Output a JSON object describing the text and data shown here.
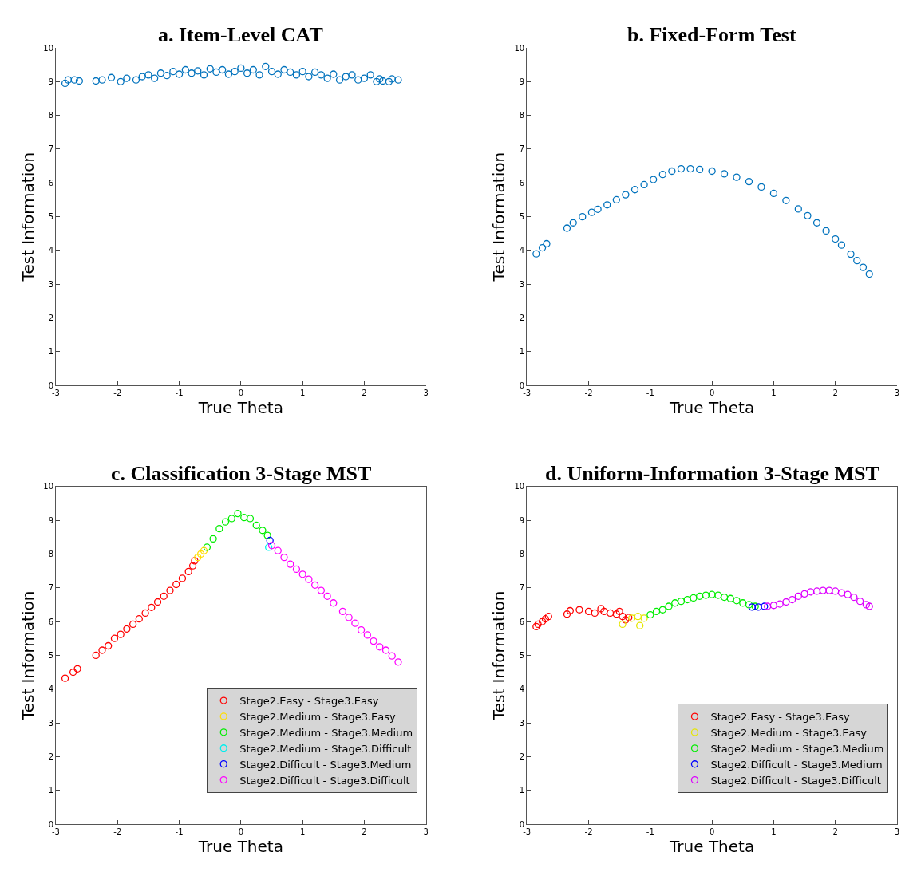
{
  "chart_data": [
    {
      "type": "scatter",
      "title": "a. Item-Level CAT",
      "xlabel": "True Theta",
      "ylabel": "Test Information",
      "xlim": [
        -3,
        3
      ],
      "ylim": [
        0,
        10
      ],
      "xticks": [
        -3,
        -2,
        -1,
        0,
        1,
        2,
        3
      ],
      "yticks": [
        0,
        1,
        2,
        3,
        4,
        5,
        6,
        7,
        8,
        9,
        10
      ],
      "marker": "circle",
      "legend": false,
      "series": [
        {
          "color": "#0072bd",
          "x": [
            -2.85,
            -2.8,
            -2.7,
            -2.62,
            -2.35,
            -2.25,
            -2.1,
            -1.95,
            -1.85,
            -1.7,
            -1.6,
            -1.5,
            -1.4,
            -1.3,
            -1.2,
            -1.1,
            -1.0,
            -0.9,
            -0.8,
            -0.7,
            -0.6,
            -0.5,
            -0.4,
            -0.3,
            -0.2,
            -0.1,
            0.0,
            0.1,
            0.2,
            0.3,
            0.4,
            0.5,
            0.6,
            0.7,
            0.8,
            0.9,
            1.0,
            1.1,
            1.2,
            1.3,
            1.4,
            1.5,
            1.6,
            1.7,
            1.8,
            1.9,
            2.0,
            2.1,
            2.2,
            2.25,
            2.3,
            2.4,
            2.45,
            2.55
          ],
          "values": [
            8.95,
            9.05,
            9.05,
            9.02,
            9.02,
            9.05,
            9.12,
            9.0,
            9.1,
            9.05,
            9.15,
            9.2,
            9.1,
            9.25,
            9.18,
            9.3,
            9.22,
            9.35,
            9.25,
            9.32,
            9.2,
            9.38,
            9.28,
            9.35,
            9.22,
            9.3,
            9.4,
            9.25,
            9.35,
            9.2,
            9.45,
            9.3,
            9.22,
            9.35,
            9.28,
            9.2,
            9.3,
            9.15,
            9.28,
            9.2,
            9.1,
            9.22,
            9.05,
            9.15,
            9.2,
            9.05,
            9.1,
            9.2,
            9.0,
            9.08,
            9.02,
            9.0,
            9.08,
            9.05
          ]
        }
      ]
    },
    {
      "type": "scatter",
      "title": "b. Fixed-Form Test",
      "xlabel": "True Theta",
      "ylabel": "Test Information",
      "xlim": [
        -3,
        3
      ],
      "ylim": [
        0,
        10
      ],
      "xticks": [
        -3,
        -2,
        -1,
        0,
        1,
        2,
        3
      ],
      "yticks": [
        0,
        1,
        2,
        3,
        4,
        5,
        6,
        7,
        8,
        9,
        10
      ],
      "marker": "circle",
      "legend": false,
      "series": [
        {
          "color": "#0072bd",
          "x": [
            -2.85,
            -2.75,
            -2.68,
            -2.35,
            -2.25,
            -2.1,
            -1.95,
            -1.85,
            -1.7,
            -1.55,
            -1.4,
            -1.25,
            -1.1,
            -0.95,
            -0.8,
            -0.65,
            -0.5,
            -0.35,
            -0.2,
            0.0,
            0.2,
            0.4,
            0.6,
            0.8,
            1.0,
            1.2,
            1.4,
            1.55,
            1.7,
            1.85,
            2.0,
            2.1,
            2.25,
            2.35,
            2.45,
            2.55
          ],
          "values": [
            3.9,
            4.08,
            4.2,
            4.66,
            4.82,
            5.0,
            5.13,
            5.22,
            5.35,
            5.5,
            5.65,
            5.8,
            5.95,
            6.1,
            6.25,
            6.35,
            6.42,
            6.42,
            6.4,
            6.35,
            6.27,
            6.17,
            6.04,
            5.88,
            5.69,
            5.48,
            5.23,
            5.03,
            4.82,
            4.58,
            4.34,
            4.16,
            3.89,
            3.7,
            3.5,
            3.3
          ]
        }
      ]
    },
    {
      "type": "scatter",
      "title": "c. Classification 3-Stage MST",
      "xlabel": "True Theta",
      "ylabel": "Test Information",
      "xlim": [
        -3,
        3
      ],
      "ylim": [
        0,
        10
      ],
      "xticks": [
        -3,
        -2,
        -1,
        0,
        1,
        2,
        3
      ],
      "yticks": [
        0,
        1,
        2,
        3,
        4,
        5,
        6,
        7,
        8,
        9,
        10
      ],
      "marker": "circle",
      "legend": "bottom right",
      "series": [
        {
          "name": "Stage2.Easy - Stage3.Easy",
          "color": "#ff0000",
          "x": [
            -2.85,
            -2.72,
            -2.65,
            -2.35,
            -2.25,
            -2.15,
            -2.05,
            -1.95,
            -1.85,
            -1.75,
            -1.65,
            -1.55,
            -1.45,
            -1.35,
            -1.25,
            -1.15,
            -1.05,
            -0.95,
            -0.85,
            -0.78,
            -0.75
          ],
          "values": [
            4.32,
            4.5,
            4.6,
            5.0,
            5.15,
            5.28,
            5.5,
            5.62,
            5.78,
            5.92,
            6.08,
            6.25,
            6.42,
            6.58,
            6.75,
            6.92,
            7.1,
            7.28,
            7.48,
            7.65,
            7.8
          ]
        },
        {
          "name": "Stage2.Medium - Stage3.Easy",
          "color": "#ffdd00",
          "x": [
            -0.7,
            -0.65,
            -0.6
          ],
          "values": [
            7.9,
            8.0,
            8.1
          ]
        },
        {
          "name": "Stage2.Medium - Stage3.Medium",
          "color": "#00ee00",
          "x": [
            -0.55,
            -0.45,
            -0.35,
            -0.25,
            -0.15,
            -0.05,
            0.05,
            0.15,
            0.25,
            0.35,
            0.43
          ],
          "values": [
            8.2,
            8.45,
            8.75,
            8.95,
            9.05,
            9.2,
            9.08,
            9.05,
            8.85,
            8.7,
            8.55
          ]
        },
        {
          "name": "Stage2.Medium - Stage3.Difficult",
          "color": "#00eeee",
          "x": [
            0.45
          ],
          "values": [
            8.2
          ]
        },
        {
          "name": "Stage2.Difficult - Stage3.Medium",
          "color": "#0000ff",
          "x": [
            0.47
          ],
          "values": [
            8.4
          ]
        },
        {
          "name": "Stage2.Difficult - Stage3.Difficult",
          "color": "#ff00ff",
          "x": [
            0.5,
            0.6,
            0.7,
            0.8,
            0.9,
            1.0,
            1.1,
            1.2,
            1.3,
            1.4,
            1.5,
            1.65,
            1.75,
            1.85,
            1.95,
            2.05,
            2.15,
            2.25,
            2.35,
            2.45,
            2.55
          ],
          "values": [
            8.25,
            8.1,
            7.9,
            7.7,
            7.55,
            7.4,
            7.25,
            7.08,
            6.92,
            6.75,
            6.55,
            6.3,
            6.12,
            5.95,
            5.75,
            5.6,
            5.42,
            5.25,
            5.15,
            4.98,
            4.8
          ]
        }
      ]
    },
    {
      "type": "scatter",
      "title": "d. Uniform-Information 3-Stage MST",
      "xlabel": "True Theta",
      "ylabel": "Test Information",
      "xlim": [
        -3,
        3
      ],
      "ylim": [
        0,
        10
      ],
      "xticks": [
        -3,
        -2,
        -1,
        0,
        1,
        2,
        3
      ],
      "yticks": [
        0,
        1,
        2,
        3,
        4,
        5,
        6,
        7,
        8,
        9,
        10
      ],
      "marker": "circle",
      "legend": "bottom right",
      "series": [
        {
          "name": "Stage2.Easy - Stage3.Easy",
          "color": "#ff0000",
          "x": [
            -2.85,
            -2.82,
            -2.75,
            -2.7,
            -2.65,
            -2.35,
            -2.3,
            -2.15,
            -2.0,
            -1.9,
            -1.8,
            -1.75,
            -1.65,
            -1.55,
            -1.5,
            -1.45,
            -1.4,
            -1.35
          ],
          "values": [
            5.85,
            5.92,
            6.0,
            6.08,
            6.15,
            6.22,
            6.32,
            6.35,
            6.3,
            6.25,
            6.38,
            6.3,
            6.25,
            6.22,
            6.3,
            6.15,
            6.05,
            6.12
          ]
        },
        {
          "name": "Stage2.Medium - Stage3.Easy",
          "color": "#e6e600",
          "x": [
            -1.45,
            -1.3,
            -1.2,
            -1.17,
            -1.1
          ],
          "values": [
            5.92,
            6.1,
            6.15,
            5.88,
            6.1
          ]
        },
        {
          "name": "Stage2.Medium - Stage3.Medium",
          "color": "#00ee00",
          "x": [
            -1.0,
            -0.9,
            -0.8,
            -0.7,
            -0.6,
            -0.5,
            -0.4,
            -0.3,
            -0.2,
            -0.1,
            0.0,
            0.1,
            0.2,
            0.3,
            0.4,
            0.5,
            0.6,
            0.7
          ],
          "values": [
            6.2,
            6.3,
            6.35,
            6.45,
            6.55,
            6.6,
            6.65,
            6.7,
            6.75,
            6.78,
            6.8,
            6.78,
            6.72,
            6.68,
            6.62,
            6.55,
            6.5,
            6.45
          ]
        },
        {
          "name": "Stage2.Difficult - Stage3.Medium",
          "color": "#0000ff",
          "x": [
            0.65,
            0.75,
            0.85
          ],
          "values": [
            6.43,
            6.43,
            6.45
          ]
        },
        {
          "name": "Stage2.Difficult - Stage3.Difficult",
          "color": "#dd00ff",
          "x": [
            0.9,
            1.0,
            1.1,
            1.2,
            1.3,
            1.4,
            1.5,
            1.6,
            1.7,
            1.8,
            1.9,
            2.0,
            2.1,
            2.2,
            2.3,
            2.4,
            2.5,
            2.55
          ],
          "values": [
            6.45,
            6.48,
            6.52,
            6.58,
            6.65,
            6.75,
            6.82,
            6.88,
            6.9,
            6.92,
            6.92,
            6.9,
            6.85,
            6.8,
            6.72,
            6.6,
            6.5,
            6.45
          ]
        }
      ]
    }
  ]
}
